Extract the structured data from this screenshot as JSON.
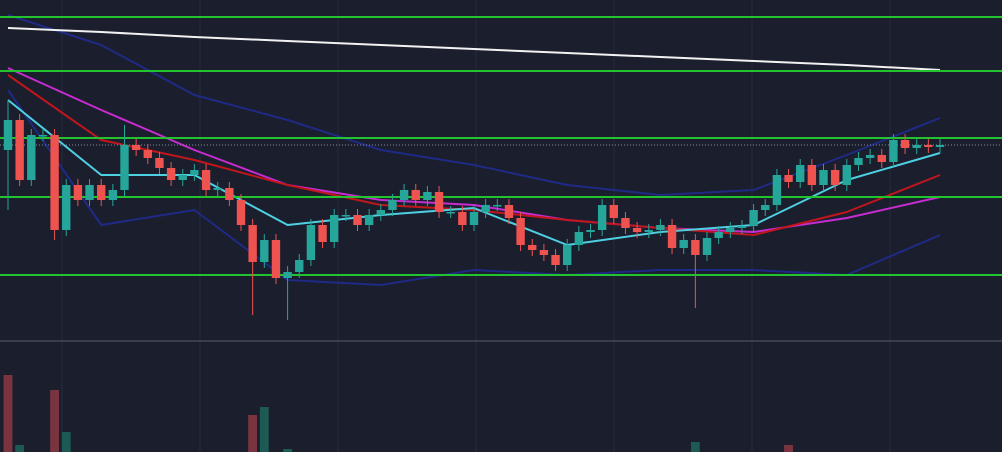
{
  "chart_data": {
    "type": "candlestick",
    "xlim": [
      0,
      80
    ],
    "ylim": [
      0,
      340
    ],
    "up_color": "#26a69a",
    "down_color": "#ef5350",
    "open": [
      190,
      220,
      160,
      205,
      205,
      110,
      155,
      140,
      155,
      140,
      150,
      195,
      190,
      182,
      172,
      160,
      165,
      170,
      150,
      152,
      140,
      115,
      78,
      100,
      62,
      68,
      80,
      115,
      98,
      125,
      125,
      115,
      125,
      130,
      140,
      150,
      140,
      148,
      128,
      128,
      115,
      128,
      135,
      135,
      122,
      95,
      90,
      85,
      75,
      95,
      108,
      110,
      135,
      122,
      112,
      108,
      110,
      115,
      92,
      100,
      85,
      102,
      108,
      112,
      114,
      130,
      135,
      165,
      158,
      175,
      155,
      170,
      155,
      175,
      182,
      185,
      178,
      200,
      192,
      195,
      193
    ],
    "high": [
      240,
      226,
      211,
      211,
      211,
      161,
      161,
      161,
      161,
      156,
      215,
      201,
      196,
      188,
      178,
      171,
      176,
      176,
      158,
      158,
      146,
      121,
      106,
      106,
      74,
      86,
      121,
      121,
      131,
      131,
      131,
      131,
      136,
      146,
      156,
      156,
      154,
      154,
      134,
      134,
      134,
      141,
      141,
      141,
      128,
      101,
      96,
      91,
      101,
      114,
      116,
      141,
      141,
      128,
      118,
      116,
      121,
      121,
      106,
      106,
      108,
      114,
      118,
      120,
      136,
      141,
      171,
      171,
      181,
      181,
      176,
      176,
      181,
      188,
      191,
      191,
      206,
      206,
      201,
      201,
      201
    ],
    "low": [
      130,
      154,
      154,
      199,
      100,
      104,
      134,
      134,
      134,
      134,
      144,
      184,
      176,
      166,
      154,
      154,
      159,
      144,
      144,
      134,
      109,
      25,
      72,
      56,
      20,
      62,
      74,
      92,
      92,
      119,
      109,
      109,
      119,
      124,
      134,
      134,
      134,
      122,
      122,
      109,
      109,
      122,
      129,
      116,
      89,
      84,
      79,
      69,
      69,
      89,
      102,
      104,
      116,
      106,
      102,
      102,
      104,
      86,
      86,
      32,
      79,
      96,
      102,
      106,
      108,
      124,
      129,
      152,
      152,
      149,
      149,
      149,
      149,
      169,
      176,
      172,
      172,
      186,
      186,
      187,
      187
    ],
    "close": [
      220,
      160,
      205,
      205,
      110,
      155,
      140,
      155,
      140,
      150,
      195,
      190,
      182,
      172,
      160,
      165,
      170,
      150,
      152,
      140,
      115,
      78,
      100,
      62,
      68,
      80,
      115,
      98,
      125,
      125,
      115,
      125,
      130,
      140,
      150,
      140,
      148,
      128,
      128,
      115,
      128,
      135,
      135,
      122,
      95,
      90,
      85,
      75,
      95,
      108,
      110,
      135,
      122,
      112,
      108,
      110,
      115,
      92,
      100,
      85,
      102,
      108,
      112,
      114,
      130,
      135,
      165,
      158,
      175,
      155,
      170,
      155,
      175,
      182,
      185,
      178,
      200,
      192,
      195,
      193,
      195
    ],
    "overlays": {
      "x": [
        0,
        8,
        16,
        24,
        32,
        40,
        48,
        56,
        64,
        72,
        80
      ],
      "series": [
        {
          "color": "#1f2a86",
          "values": [
            325,
            295,
            245,
            220,
            190,
            175,
            155,
            145,
            150,
            185,
            222
          ]
        },
        {
          "color": "#1f2a86",
          "values": [
            250,
            115,
            130,
            60,
            55,
            70,
            65,
            70,
            70,
            65,
            105
          ]
        },
        {
          "color": "#f2f2f2",
          "values": [
            312,
            308,
            303,
            299,
            295,
            291,
            287,
            283,
            279,
            275,
            270
          ]
        },
        {
          "color": "#c62ccf",
          "values": [
            272,
            230,
            190,
            155,
            140,
            135,
            120,
            112,
            108,
            122,
            143
          ]
        },
        {
          "color": "#c0161c",
          "values": [
            265,
            200,
            180,
            155,
            135,
            130,
            120,
            112,
            105,
            128,
            165
          ]
        },
        {
          "color": "#4dd0e1",
          "values": [
            240,
            165,
            165,
            115,
            125,
            132,
            95,
            108,
            115,
            160,
            187
          ]
        }
      ]
    },
    "levels": {
      "color": "#22c32e",
      "values": [
        323,
        269,
        202,
        143,
        65
      ]
    },
    "last_price": 195,
    "volume": {
      "ylim": [
        0,
        110
      ],
      "x": [
        0,
        1,
        4,
        5,
        21,
        22,
        24,
        59,
        67
      ],
      "values": [
        77,
        7,
        62,
        20,
        37,
        45,
        3,
        10,
        7
      ],
      "colors": [
        "#7a3440",
        "#1e5a54",
        "#7a3440",
        "#1e5a54",
        "#7a3440",
        "#1e5a54",
        "#1e5a54",
        "#1e5a54",
        "#7a3440"
      ]
    }
  }
}
